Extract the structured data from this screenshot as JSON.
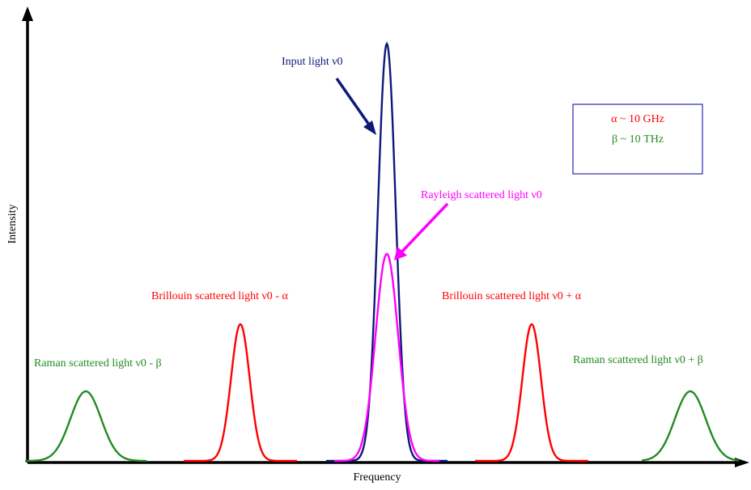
{
  "axes": {
    "xlabel": "Frequency",
    "ylabel": "Intensity"
  },
  "labels": {
    "input": "Input light ν0",
    "rayleigh": "Rayleigh scattered light ν0",
    "brillouin_left": "Brillouin scattered light ν0 - α",
    "brillouin_right": "Brillouin scattered light ν0 + α",
    "raman_left": "Raman scattered light ν0 - β",
    "raman_right": "Raman scattered light ν0 + β"
  },
  "legend_box": {
    "line1": "α ~ 10 GHz",
    "line2": "β ~ 10 THz"
  },
  "colors": {
    "axis": "#000000",
    "input": "#0d1a78",
    "rayleigh": "#ff00ff",
    "brillouin": "#ff0000",
    "raman": "#228b22",
    "box": "#2a2ab0",
    "alpha_text": "#ff0000",
    "beta_text": "#228b22"
  }
}
